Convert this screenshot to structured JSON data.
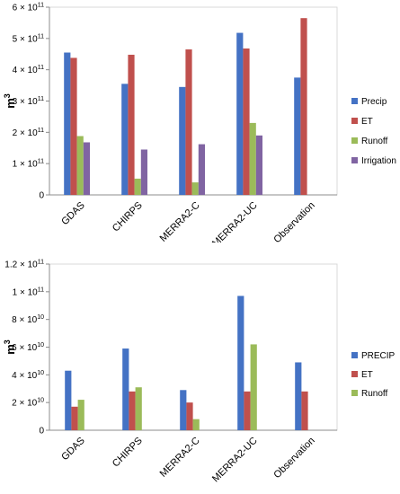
{
  "chart_data": [
    {
      "type": "bar",
      "title": "",
      "xlabel": "",
      "ylabel": "m",
      "ylabel_exponent": "3",
      "categories": [
        "GDAS",
        "CHIRPS",
        "MERRA2-C",
        "MERRA2-UC",
        "Observation"
      ],
      "ylim": [
        0,
        600000000000.0
      ],
      "yticks": [
        0,
        100000000000.0,
        200000000000.0,
        300000000000.0,
        400000000000.0,
        500000000000.0,
        600000000000.0
      ],
      "ytick_labels": [
        {
          "base": "0",
          "exp": ""
        },
        {
          "base": "1 × 10",
          "exp": "11"
        },
        {
          "base": "2 × 10",
          "exp": "11"
        },
        {
          "base": "3 × 10",
          "exp": "11"
        },
        {
          "base": "4 × 10",
          "exp": "11"
        },
        {
          "base": "5 × 10",
          "exp": "11"
        },
        {
          "base": "6 × 10",
          "exp": "11"
        }
      ],
      "grid": false,
      "legend_position": "right",
      "series": [
        {
          "name": "Precip",
          "color": "#4472C4",
          "values": [
            455000000000.0,
            355000000000.0,
            345000000000.0,
            518000000000.0,
            375000000000.0
          ]
        },
        {
          "name": "ET",
          "color": "#C0504D",
          "values": [
            438000000000.0,
            448000000000.0,
            465000000000.0,
            468000000000.0,
            565000000000.0
          ]
        },
        {
          "name": "Runoff",
          "color": "#9BBB59",
          "values": [
            188000000000.0,
            52000000000.0,
            40000000000.0,
            230000000000.0,
            null
          ]
        },
        {
          "name": "Irrigation",
          "color": "#8064A2",
          "values": [
            168000000000.0,
            145000000000.0,
            162000000000.0,
            190000000000.0,
            null
          ]
        }
      ]
    },
    {
      "type": "bar",
      "title": "",
      "xlabel": "",
      "ylabel": "m",
      "ylabel_exponent": "3",
      "categories": [
        "GDAS",
        "CHIRPS",
        "MERRA2-C",
        "MERRA2-UC",
        "Observation"
      ],
      "ylim": [
        0,
        120000000000.0
      ],
      "yticks": [
        0,
        20000000000.0,
        40000000000.0,
        60000000000.0,
        80000000000.0,
        100000000000.0,
        120000000000.0
      ],
      "ytick_labels": [
        {
          "base": "0",
          "exp": ""
        },
        {
          "base": "2 × 10",
          "exp": "10"
        },
        {
          "base": "4 × 10",
          "exp": "10"
        },
        {
          "base": "6 × 10",
          "exp": "10"
        },
        {
          "base": "8 × 10",
          "exp": "10"
        },
        {
          "base": "1 × 10",
          "exp": "11"
        },
        {
          "base": "1.2 × 10",
          "exp": "11"
        }
      ],
      "grid": false,
      "legend_position": "right",
      "series": [
        {
          "name": "PRECIP",
          "color": "#4472C4",
          "values": [
            43000000000.0,
            59000000000.0,
            29000000000.0,
            97000000000.0,
            49000000000.0
          ]
        },
        {
          "name": "ET",
          "color": "#C0504D",
          "values": [
            17000000000.0,
            28000000000.0,
            20000000000.0,
            28000000000.0,
            28000000000.0
          ]
        },
        {
          "name": "Runoff",
          "color": "#9BBB59",
          "values": [
            22000000000.0,
            31000000000.0,
            8000000000.0,
            62000000000.0,
            null
          ]
        }
      ]
    }
  ]
}
